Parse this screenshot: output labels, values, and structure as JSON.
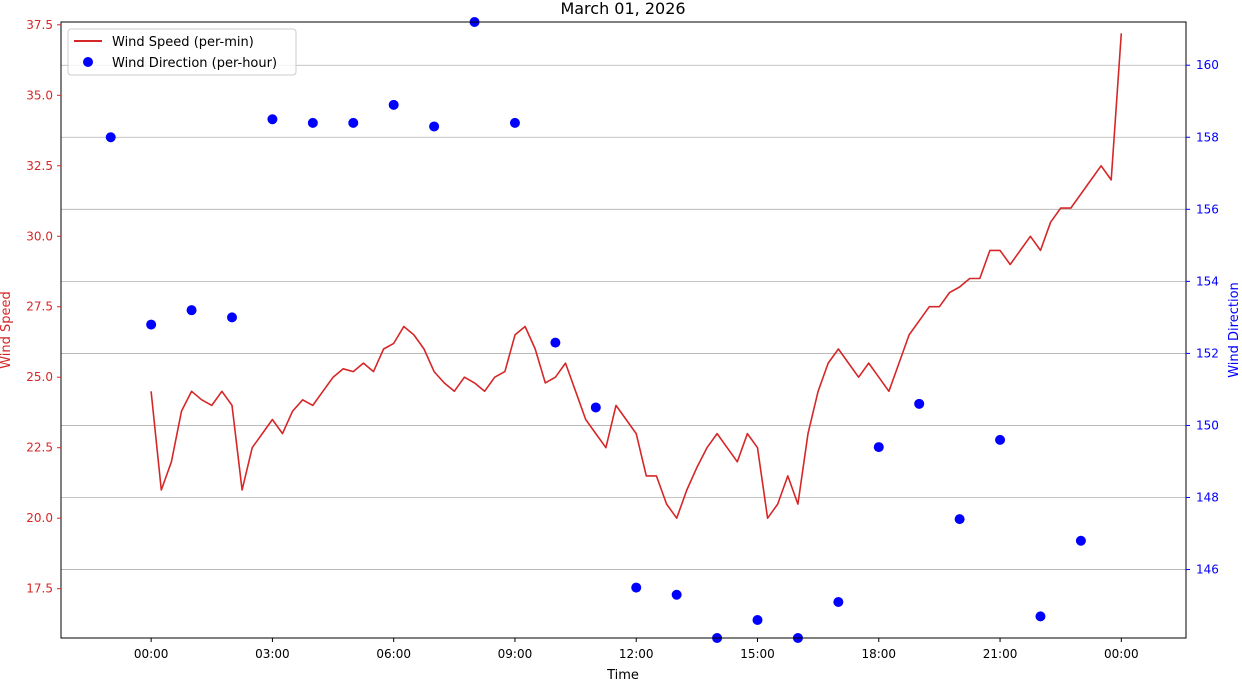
{
  "chart_data": {
    "type": "line",
    "title": "March 01, 2026",
    "xlabel": "Time",
    "ylabel_left": "Wind Speed",
    "ylabel_right": "Wind Direction",
    "x_unit": "hours since 00:00",
    "xlim": [
      -2.23,
      25.6
    ],
    "x_ticks": [
      {
        "x": 0,
        "label": "00:00"
      },
      {
        "x": 3,
        "label": "03:00"
      },
      {
        "x": 6,
        "label": "06:00"
      },
      {
        "x": 9,
        "label": "09:00"
      },
      {
        "x": 12,
        "label": "12:00"
      },
      {
        "x": 15,
        "label": "15:00"
      },
      {
        "x": 18,
        "label": "18:00"
      },
      {
        "x": 21,
        "label": "21:00"
      },
      {
        "x": 24,
        "label": "00:00"
      }
    ],
    "ylim_left": [
      15.75,
      37.6
    ],
    "y_ticks_left": [
      17.5,
      20.0,
      22.5,
      25.0,
      27.5,
      30.0,
      32.5,
      35.0,
      37.5
    ],
    "ylim_right": [
      144.1,
      161.2
    ],
    "y_ticks_right": [
      146,
      148,
      150,
      152,
      154,
      156,
      158,
      160
    ],
    "grid": "horizontal (right axis)",
    "legend_position": "upper-left",
    "series": [
      {
        "name": "Wind Speed (per-min)",
        "axis": "left",
        "style": "line",
        "color": "#d62728",
        "x": [
          0.0,
          0.25,
          0.5,
          0.75,
          1.0,
          1.25,
          1.5,
          1.75,
          2.0,
          2.25,
          2.5,
          2.75,
          3.0,
          3.25,
          3.5,
          3.75,
          4.0,
          4.25,
          4.5,
          4.75,
          5.0,
          5.25,
          5.5,
          5.75,
          6.0,
          6.25,
          6.5,
          6.75,
          7.0,
          7.25,
          7.5,
          7.75,
          8.0,
          8.25,
          8.5,
          8.75,
          9.0,
          9.25,
          9.5,
          9.75,
          10.0,
          10.25,
          10.5,
          10.75,
          11.0,
          11.25,
          11.5,
          11.75,
          12.0,
          12.25,
          12.5,
          12.75,
          13.0,
          13.25,
          13.5,
          13.75,
          14.0,
          14.25,
          14.5,
          14.75,
          15.0,
          15.25,
          15.5,
          15.75,
          16.0,
          16.25,
          16.5,
          16.75,
          17.0,
          17.25,
          17.5,
          17.75,
          18.0,
          18.25,
          18.5,
          18.75,
          19.0,
          19.25,
          19.5,
          19.75,
          20.0,
          20.25,
          20.5,
          20.75,
          21.0,
          21.25,
          21.5,
          21.75,
          22.0,
          22.25,
          22.5,
          22.75,
          23.0,
          23.25,
          23.5,
          23.75,
          24.0
        ],
        "values": [
          24.5,
          21.0,
          22.0,
          23.8,
          24.5,
          24.2,
          24.0,
          24.5,
          24.0,
          21.0,
          22.5,
          23.0,
          23.5,
          23.0,
          23.8,
          24.2,
          24.0,
          24.5,
          25.0,
          25.3,
          25.2,
          25.5,
          25.2,
          26.0,
          26.2,
          26.8,
          26.5,
          26.0,
          25.2,
          24.8,
          24.5,
          25.0,
          24.8,
          24.5,
          25.0,
          25.2,
          26.5,
          26.8,
          26.0,
          24.8,
          25.0,
          25.5,
          24.5,
          23.5,
          23.0,
          22.5,
          24.0,
          23.5,
          23.0,
          21.5,
          21.5,
          20.5,
          20.0,
          21.0,
          21.8,
          22.5,
          23.0,
          22.5,
          22.0,
          23.0,
          22.5,
          20.0,
          20.5,
          21.5,
          20.5,
          23.0,
          24.5,
          25.5,
          26.0,
          25.5,
          25.0,
          25.5,
          25.0,
          24.5,
          25.5,
          26.5,
          27.0,
          27.5,
          27.5,
          28.0,
          28.2,
          28.5,
          28.5,
          29.5,
          29.5,
          29.0,
          29.5,
          30.0,
          29.5,
          30.5,
          31.0,
          31.0,
          31.5,
          32.0,
          32.5,
          32.0,
          37.2
        ]
      },
      {
        "name": "Wind Direction (per-hour)",
        "axis": "right",
        "style": "markers",
        "color": "#0000ff",
        "x": [
          -1,
          0,
          1,
          2,
          3,
          4,
          5,
          6,
          7,
          8,
          9,
          10,
          11,
          12,
          13,
          14,
          15,
          16,
          17,
          18,
          19,
          20,
          21,
          22,
          23
        ],
        "values": [
          158.0,
          152.8,
          153.2,
          153.0,
          158.5,
          158.4,
          158.4,
          158.9,
          158.3,
          161.2,
          158.4,
          152.3,
          150.5,
          145.5,
          145.3,
          144.1,
          144.6,
          144.1,
          145.1,
          149.4,
          150.6,
          147.4,
          149.6,
          144.7,
          146.8
        ]
      }
    ]
  }
}
